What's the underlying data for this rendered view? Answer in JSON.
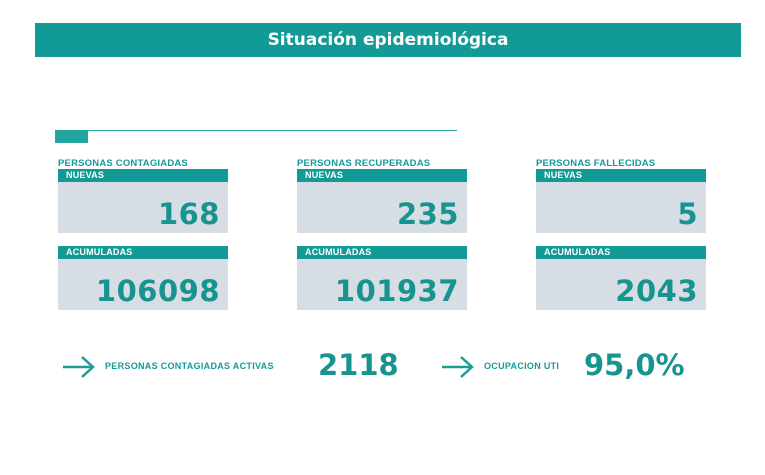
{
  "header": {
    "title": "Situación epidemiológica"
  },
  "groups": [
    {
      "title": "PERSONAS CONTAGIADAS",
      "new_label": "NUEVAS",
      "new_value": "168",
      "acc_label": "ACUMULADAS",
      "acc_value": "106098"
    },
    {
      "title": "PERSONAS RECUPERADAS",
      "new_label": "NUEVAS",
      "new_value": "235",
      "acc_label": "ACUMULADAS",
      "acc_value": "101937"
    },
    {
      "title": "PERSONAS FALLECIDAS",
      "new_label": "NUEVAS",
      "new_value": "5",
      "acc_label": "ACUMULADAS",
      "acc_value": "2043"
    }
  ],
  "active": {
    "label": "PERSONAS CONTAGIADAS ACTIVAS",
    "value": "2118",
    "icon": "arrow-right-icon"
  },
  "icu": {
    "label": "OCUPACION UTI",
    "value": "95,0%",
    "icon": "arrow-right-icon"
  },
  "colors": {
    "teal": "#129b96",
    "card": "#d7dde4",
    "value": "#17948f"
  }
}
